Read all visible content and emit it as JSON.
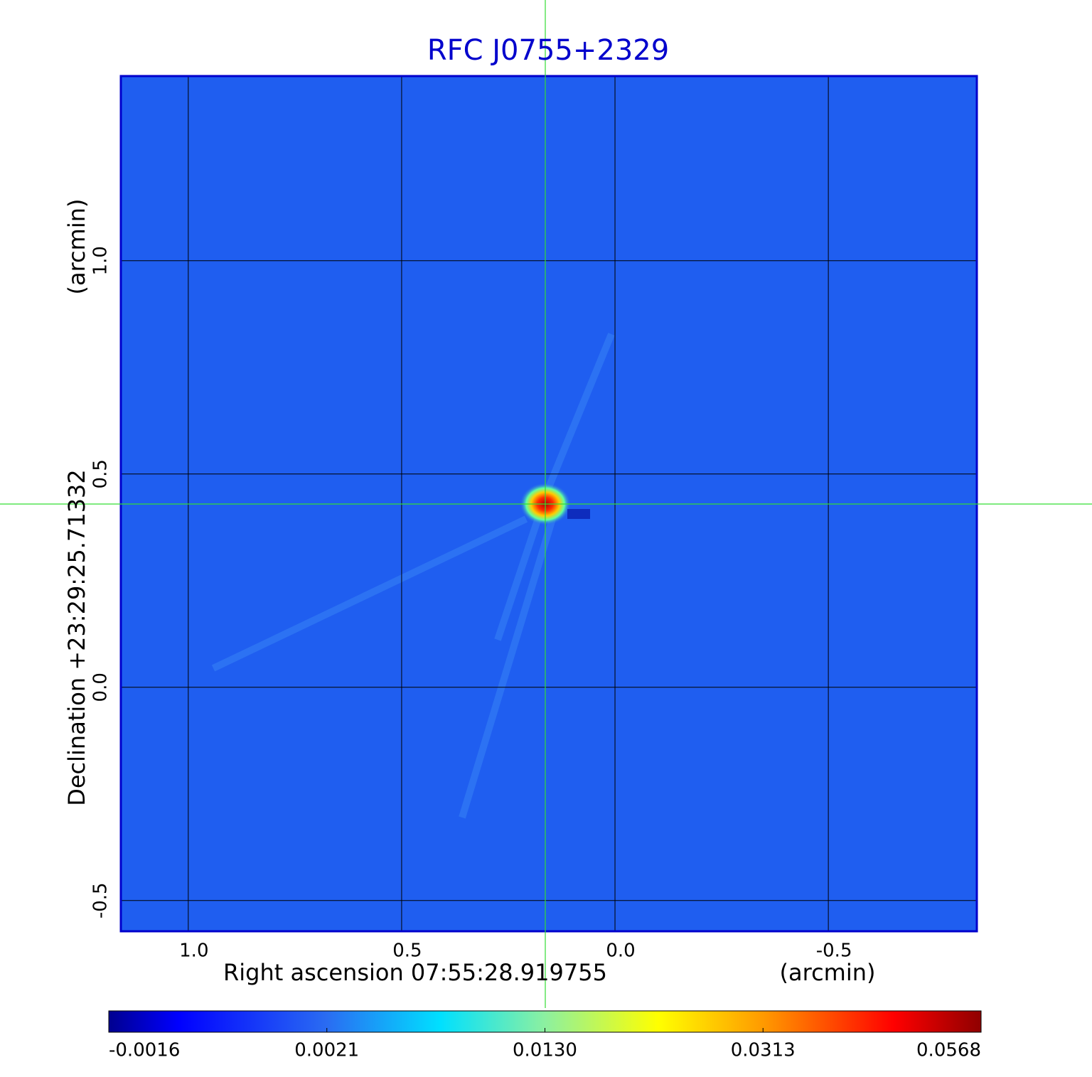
{
  "chart_data": {
    "type": "image",
    "title": "RFC J0755+2329",
    "x_label": "Right ascension  07:55:28.919755",
    "x_unit": "(arcmin)",
    "y_label": "Declination  +23:29:25.71332",
    "y_unit": "(arcmin)",
    "xlim": [
      1.158,
      -0.848
    ],
    "ylim": [
      -0.572,
      1.433
    ],
    "xticks": [
      {
        "value": 1,
        "label": "1.0"
      },
      0.5,
      {
        "value": 0,
        "label": "0.0"
      },
      -0.5
    ],
    "yticks": [
      -0.5,
      {
        "value": 0,
        "label": "0.0"
      },
      0.5,
      {
        "value": 1,
        "label": "1.0"
      }
    ],
    "grid": true,
    "colorbar_ticks": [
      -0.0016,
      0.0021,
      {
        "value": 0.013,
        "label": "0.0130"
      },
      0.0313,
      0.0568
    ]
  }
}
